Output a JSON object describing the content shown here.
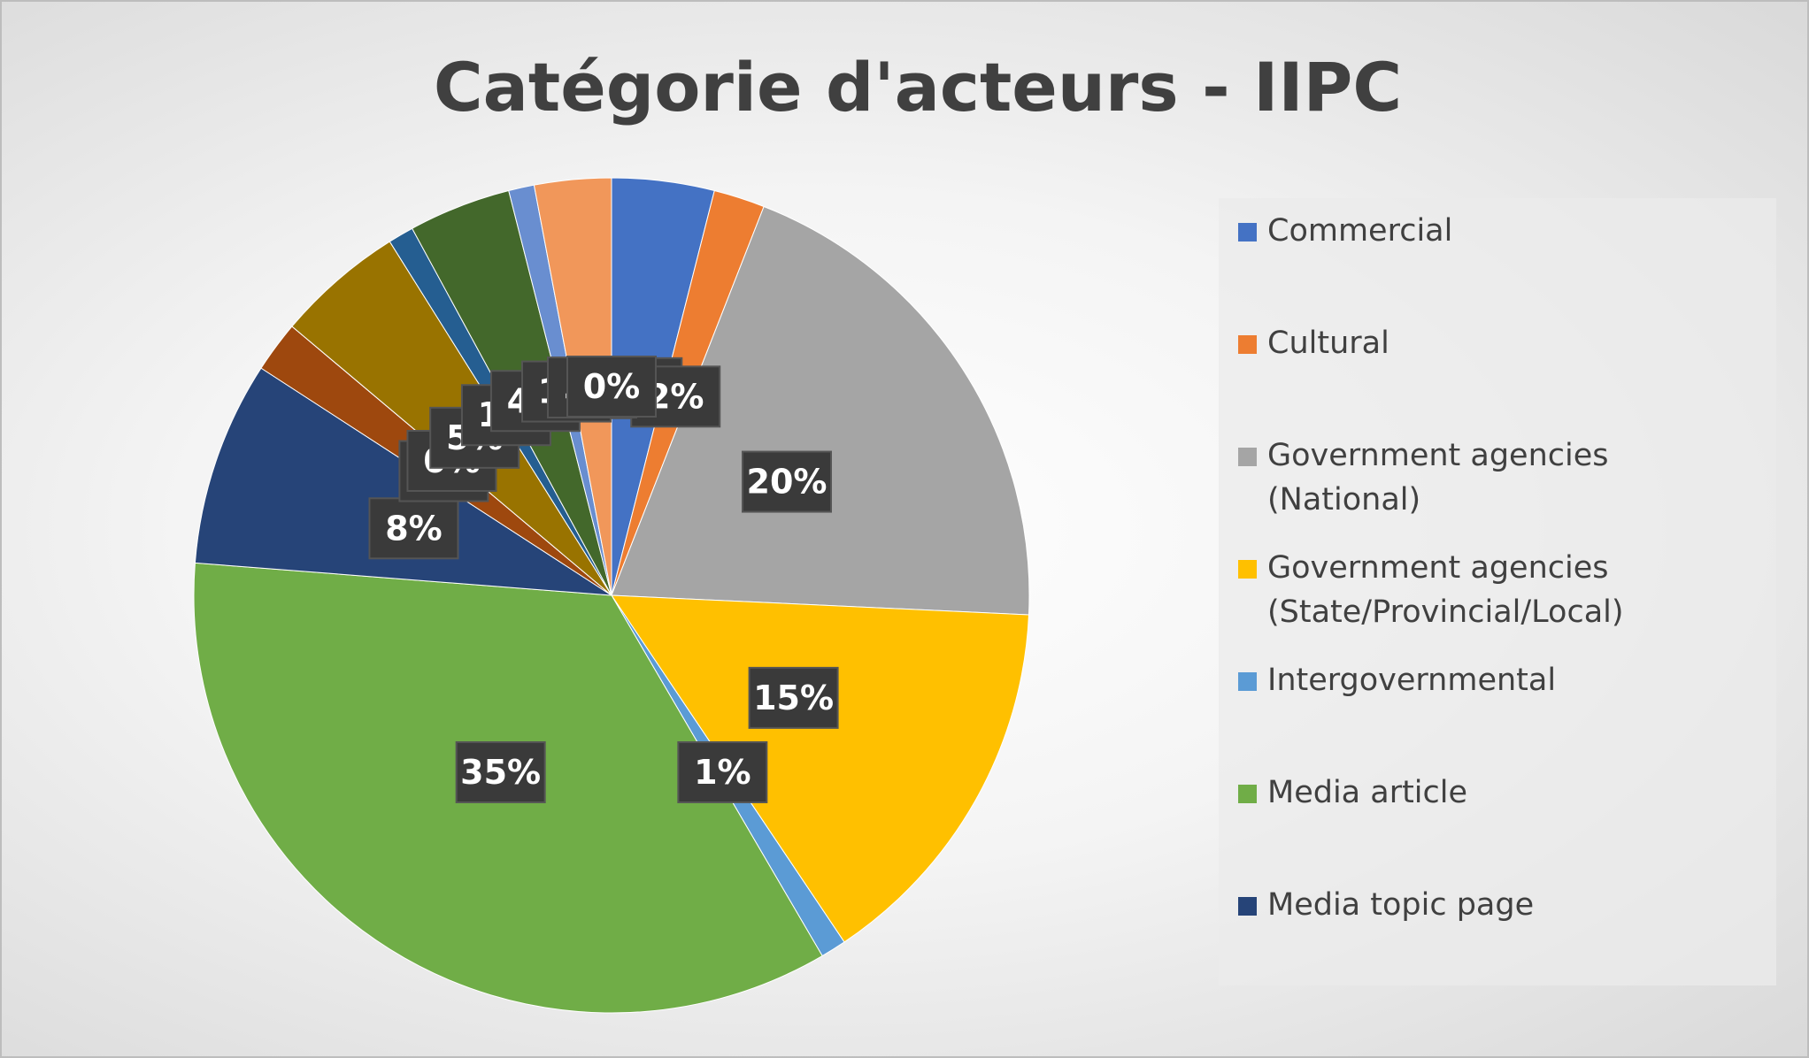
{
  "chart_data": {
    "type": "pie",
    "title": "Catégorie d'acteurs - IIPC",
    "categories": [
      "Commercial",
      "Cultural",
      "Government agencies (National)",
      "Government agencies (State/Provincial/Local)",
      "Intergovernmental",
      "Media article",
      "Media topic page",
      null,
      null,
      null,
      null,
      null,
      null,
      null,
      null
    ],
    "values": [
      4,
      2,
      20,
      15,
      1,
      35,
      8,
      2,
      0,
      5,
      1,
      4,
      1,
      3,
      0
    ],
    "value_labels": [
      "4%",
      "2%",
      "20%",
      "15%",
      "1%",
      "35%",
      "8%",
      "2%",
      "0%",
      "5%",
      "1%",
      "4%",
      "1%",
      "3%",
      "0%"
    ],
    "colors": [
      "#4472c4",
      "#ed7d31",
      "#a5a5a5",
      "#ffc000",
      "#5b9bd5",
      "#70ad47",
      "#264478",
      "#9e480e",
      "#636363",
      "#997300",
      "#255e91",
      "#43682b",
      "#698ed0",
      "#f1975a",
      "#b7b7b7"
    ],
    "legend": "right"
  }
}
